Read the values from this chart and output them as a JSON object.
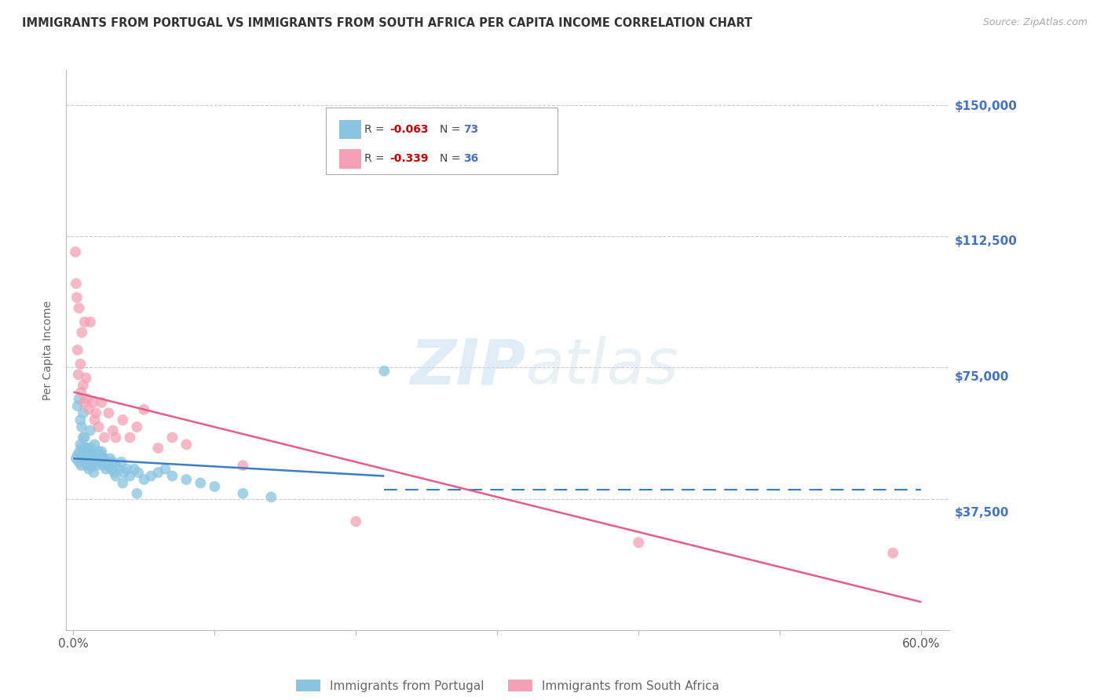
{
  "title": "IMMIGRANTS FROM PORTUGAL VS IMMIGRANTS FROM SOUTH AFRICA PER CAPITA INCOME CORRELATION CHART",
  "source": "Source: ZipAtlas.com",
  "ylabel": "Per Capita Income",
  "xlabel_ticks": [
    "0.0%",
    "",
    "",
    "",
    "",
    "",
    "60.0%"
  ],
  "xlabel_vals": [
    0.0,
    10.0,
    20.0,
    30.0,
    40.0,
    50.0,
    60.0
  ],
  "ytick_vals": [
    0,
    37500,
    75000,
    112500,
    150000
  ],
  "ytick_labels": [
    "",
    "$37,500",
    "$75,000",
    "$112,500",
    "$150,000"
  ],
  "xlim": [
    -0.5,
    62.0
  ],
  "ylim": [
    5000,
    160000
  ],
  "background_color": "#ffffff",
  "grid_color": "#cccccc",
  "portugal_color": "#89c4e1",
  "south_africa_color": "#f4a0b5",
  "portugal_R": -0.063,
  "portugal_N": 73,
  "south_africa_R": -0.339,
  "south_africa_N": 36,
  "portugal_scatter_x": [
    0.2,
    0.3,
    0.4,
    0.45,
    0.5,
    0.55,
    0.6,
    0.65,
    0.7,
    0.75,
    0.8,
    0.85,
    0.9,
    0.95,
    1.0,
    1.05,
    1.1,
    1.15,
    1.2,
    1.25,
    1.3,
    1.35,
    1.4,
    1.45,
    1.5,
    1.6,
    1.7,
    1.8,
    1.9,
    2.0,
    2.1,
    2.2,
    2.3,
    2.4,
    2.5,
    2.6,
    2.7,
    2.8,
    2.9,
    3.0,
    3.2,
    3.4,
    3.6,
    3.8,
    4.0,
    4.3,
    4.6,
    5.0,
    5.5,
    6.0,
    6.5,
    7.0,
    8.0,
    9.0,
    10.0,
    12.0,
    14.0,
    0.3,
    0.4,
    0.5,
    0.6,
    0.7,
    0.8,
    1.0,
    1.2,
    1.5,
    1.8,
    2.0,
    2.5,
    3.0,
    3.5,
    4.5,
    22.0
  ],
  "portugal_scatter_y": [
    49000,
    50000,
    48000,
    51000,
    53000,
    47000,
    52000,
    50000,
    55000,
    49000,
    51000,
    48000,
    50000,
    47000,
    52000,
    48000,
    46000,
    51000,
    49000,
    52000,
    47000,
    50000,
    48000,
    45000,
    49000,
    47000,
    50000,
    51000,
    48000,
    50000,
    47000,
    49000,
    46000,
    48000,
    47000,
    49000,
    46000,
    48000,
    45000,
    47000,
    46000,
    48000,
    45000,
    46000,
    44000,
    46000,
    45000,
    43000,
    44000,
    45000,
    46000,
    44000,
    43000,
    42000,
    41000,
    39000,
    38000,
    64000,
    66000,
    60000,
    58000,
    62000,
    55000,
    52000,
    57000,
    53000,
    49000,
    51000,
    47000,
    44000,
    42000,
    39000,
    74000
  ],
  "south_africa_scatter_x": [
    0.15,
    0.25,
    0.3,
    0.4,
    0.5,
    0.55,
    0.6,
    0.7,
    0.75,
    0.8,
    0.9,
    1.0,
    1.1,
    1.2,
    1.4,
    1.5,
    1.6,
    1.8,
    2.0,
    2.2,
    2.5,
    2.8,
    3.0,
    3.5,
    4.0,
    4.5,
    5.0,
    6.0,
    7.0,
    8.0,
    12.0,
    20.0,
    40.0,
    58.0,
    0.2,
    0.35
  ],
  "south_africa_scatter_y": [
    108000,
    95000,
    80000,
    92000,
    76000,
    68000,
    85000,
    70000,
    65000,
    88000,
    72000,
    66000,
    63000,
    88000,
    65000,
    60000,
    62000,
    58000,
    65000,
    55000,
    62000,
    57000,
    55000,
    60000,
    55000,
    58000,
    63000,
    52000,
    55000,
    53000,
    47000,
    31000,
    25000,
    22000,
    99000,
    73000
  ],
  "portugal_trend_x": [
    0.0,
    22.0
  ],
  "portugal_trend_y": [
    49000,
    44000
  ],
  "south_africa_trend_x": [
    0.0,
    60.0
  ],
  "south_africa_trend_y": [
    68000,
    8000
  ],
  "dashed_line_y": 40000,
  "dashed_x_start": 22.0,
  "dashed_x_end": 60.0,
  "axis_label_color": "#4472c4",
  "title_fontsize": 10.5,
  "tick_label_color": "#4472c4",
  "watermark_text": "ZIPatlas",
  "bottom_legend_labels": [
    "Immigrants from Portugal",
    "Immigrants from South Africa"
  ]
}
